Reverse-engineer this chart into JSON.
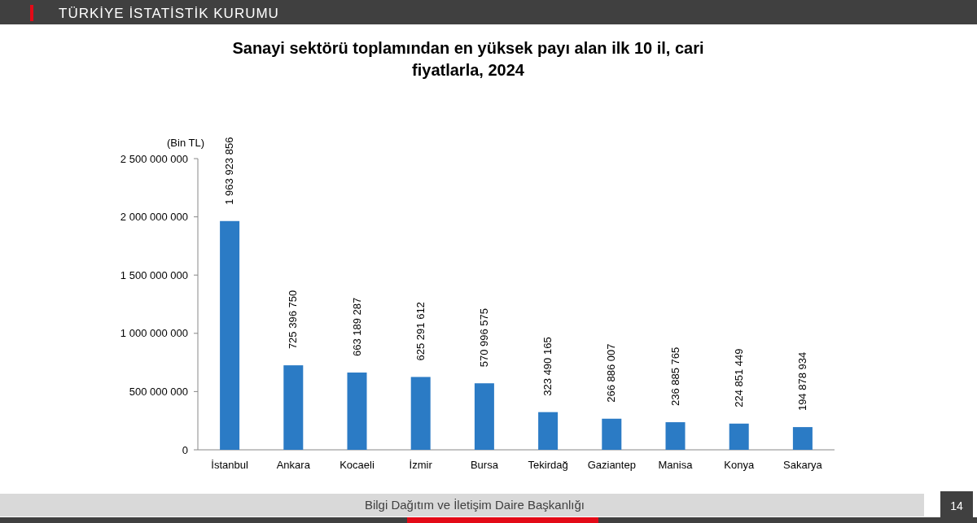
{
  "chart_data": {
    "type": "bar",
    "title": "Sanayi sektörü toplamından en yüksek payı alan ilk 10 il, cari fiyatlarla, 2024",
    "ylabel": "(Bin TL)",
    "categories": [
      "İstanbul",
      "Ankara",
      "Kocaeli",
      "İzmir",
      "Bursa",
      "Tekirdağ",
      "Gaziantep",
      "Manisa",
      "Konya",
      "Sakarya"
    ],
    "values": [
      1963923856,
      725396750,
      663189287,
      625291612,
      570996575,
      323490165,
      266886007,
      236885765,
      224851449,
      194878934
    ],
    "color": "#2b7bc5",
    "data_labels": true,
    "ylim": [
      0,
      2500000000
    ],
    "yticks": [
      0,
      {
        "value": 500000000,
        "label": "500 000 000"
      },
      {
        "value": 1000000000,
        "label": "1 000 000 000"
      },
      {
        "value": 1500000000,
        "label": "1 500 000 000"
      },
      {
        "value": 2000000000,
        "label": "2 000 000 000"
      },
      {
        "value": 2500000000,
        "label": "2 500 000 000"
      }
    ],
    "annotations": [
      "TÜRKİYE İSTATİSTİK KURUMU",
      "Bilgi Dağıtım ve İletişim Daire Başkanlığı",
      "14"
    ]
  }
}
